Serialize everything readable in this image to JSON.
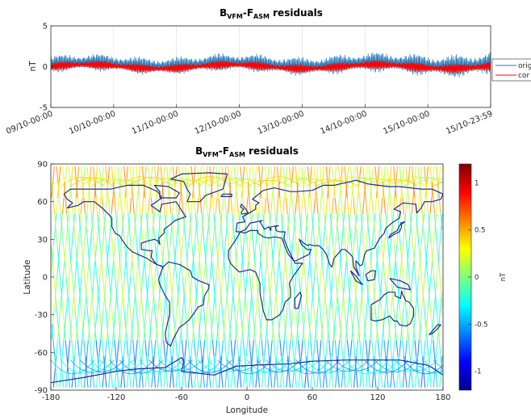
{
  "colors": {
    "original": "#1f77b4",
    "corrected": "#ff0000",
    "coastline": "#1c2a9c",
    "grid": "#dcdcdc"
  },
  "chart_data": [
    {
      "type": "line",
      "title": {
        "b": "B",
        "b_sub": "VFM",
        "dash": "-F",
        "f_sub": "ASM",
        "rest": " residuals"
      },
      "ylabel": "nT",
      "ylim": [
        -5,
        5
      ],
      "yticks": [
        5,
        0,
        -5
      ],
      "x_tick_labels": [
        "09/10-00:00",
        "10/10-00:00",
        "11/10-00:00",
        "12/10-00:00",
        "13/10-00:00",
        "14/10-00:00",
        "15/10-00:00",
        "15/10-23:59"
      ],
      "x_range_days": [
        0,
        7
      ],
      "grid": true,
      "legend": {
        "position": "right",
        "entries": [
          "orig",
          "cor"
        ]
      },
      "series": [
        {
          "name": "orig",
          "amplitude_nT": 1.0,
          "amplitude_end_nT": 1.4,
          "offset_nT": 0.3
        },
        {
          "name": "cor",
          "amplitude_nT": 0.5,
          "amplitude_end_nT": 0.6,
          "offset_nT": 0.0
        }
      ]
    },
    {
      "type": "heatmap",
      "title": {
        "b": "B",
        "b_sub": "VFM",
        "dash": "-F",
        "f_sub": "ASM",
        "rest": " residuals"
      },
      "xlabel": "Longitude",
      "ylabel": "Latitude",
      "xlim": [
        -180,
        180
      ],
      "ylim": [
        -90,
        90
      ],
      "xticks": [
        -180,
        -120,
        -60,
        0,
        60,
        120,
        180
      ],
      "yticks": [
        90,
        60,
        30,
        0,
        -30,
        -60,
        -90
      ],
      "colorbar": {
        "label": "nT",
        "range": [
          -1.2,
          1.2
        ],
        "ticks": [
          1,
          0.5,
          0,
          -0.5,
          -1
        ],
        "colormap": "jet"
      },
      "orbit_tracks": 64
    }
  ]
}
